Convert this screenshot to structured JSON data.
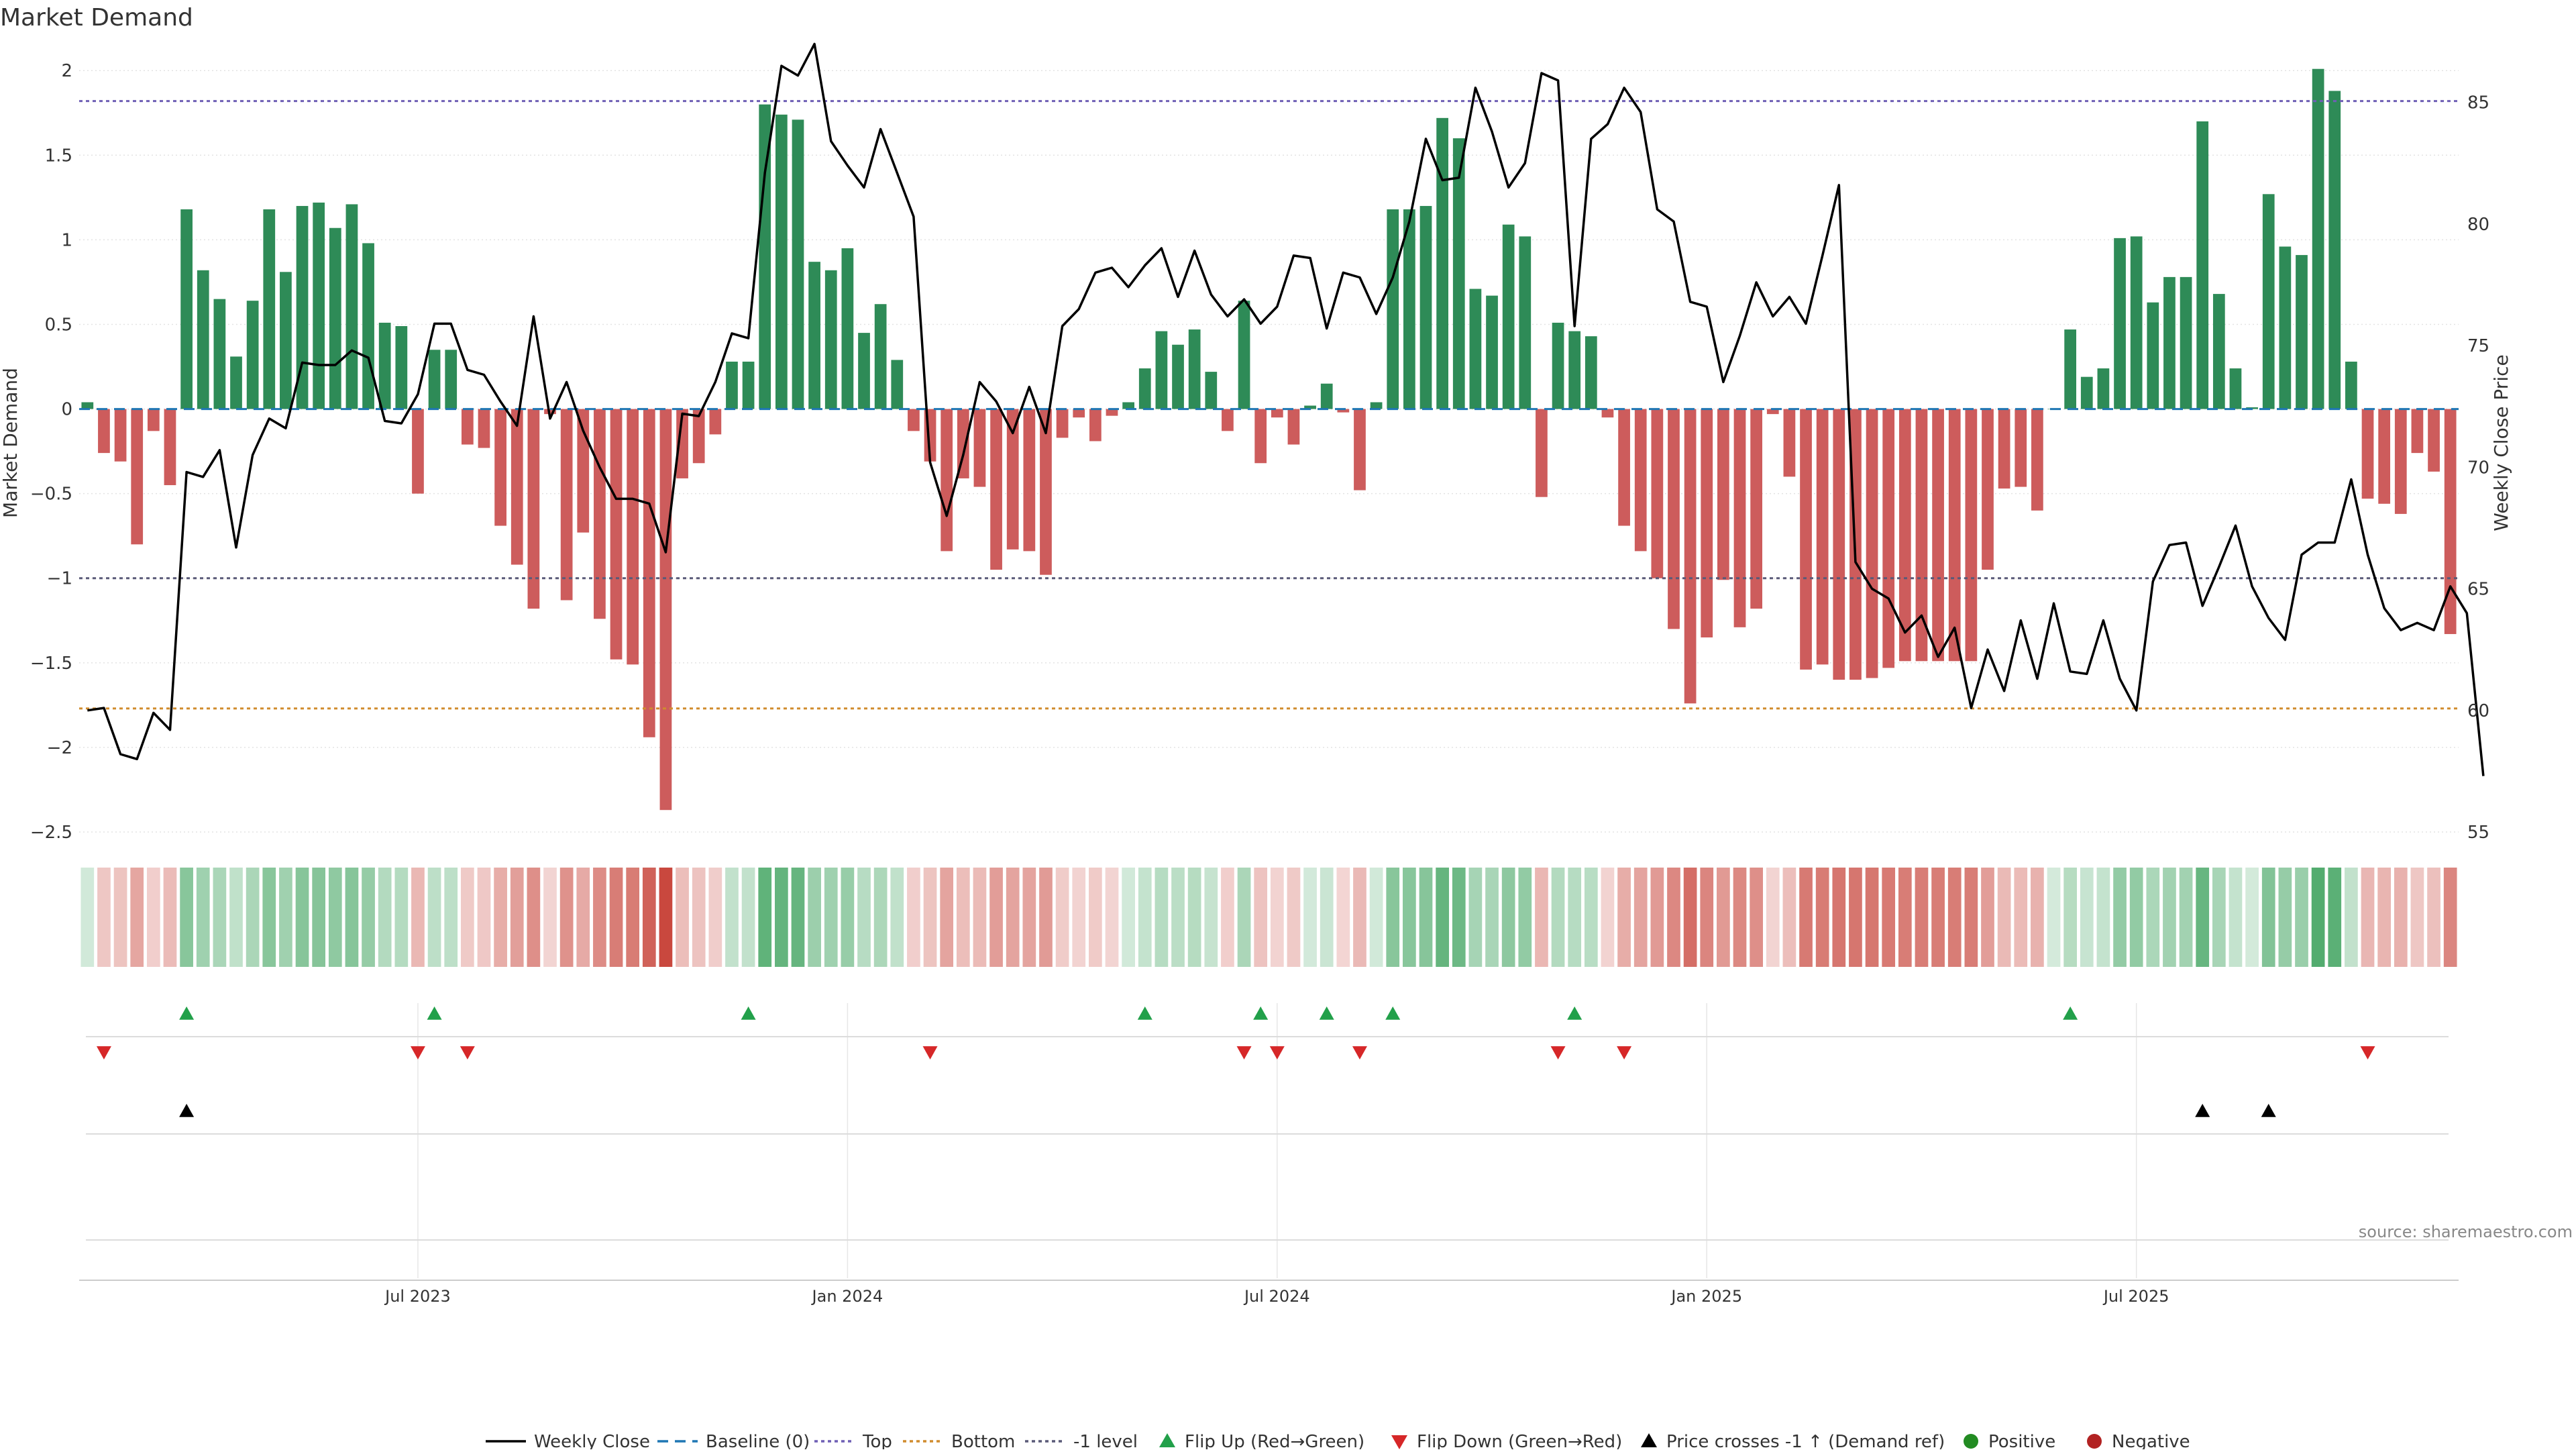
{
  "title": "Market Demand",
  "source": "source: sharemaestro.com",
  "colors": {
    "positive": "#2e8b57",
    "negative": "#cd5c5c",
    "line": "#000000",
    "top": "#6f5fb5",
    "bottom": "#d08c2e",
    "minus1": "#5a5a78",
    "baseline": "#1f77b4",
    "flip_up": "#22a04a",
    "flip_down": "#d62728",
    "cross": "#000000",
    "dot_pos": "#228b22",
    "dot_neg": "#b22222"
  },
  "chart_data": {
    "type": "bar",
    "title": "Market Demand",
    "ylabel": "Market Demand",
    "y2label": "Weekly Close Price",
    "ylim": [
      -2.5,
      2.1
    ],
    "y2lim": [
      55,
      87
    ],
    "yticks": [
      "2",
      "1.5",
      "1",
      "0.5",
      "0",
      "−0.5",
      "−1",
      "−1.5",
      "−2",
      "−2.5"
    ],
    "ytick_values": [
      2,
      1.5,
      1,
      0.5,
      0,
      -0.5,
      -1,
      -1.5,
      -2,
      -2.5
    ],
    "y2ticks": [
      "85",
      "80",
      "75",
      "70",
      "65",
      "60",
      "55"
    ],
    "y2tick_values": [
      85,
      80,
      75,
      70,
      65,
      60,
      55
    ],
    "xticks": [
      "Jul 2023",
      "Jan 2024",
      "Jul 2024",
      "Jan 2025",
      "Jul 2025"
    ],
    "xtick_weeks": [
      20.5,
      46.5,
      72.5,
      98.5,
      124.5
    ],
    "reference_lines": {
      "top": 1.82,
      "bottom": -1.77,
      "minus1": -1.0,
      "baseline": 0
    },
    "demand": [
      0.04,
      -0.26,
      -0.31,
      -0.8,
      -0.13,
      -0.45,
      1.18,
      0.82,
      0.65,
      0.31,
      0.64,
      1.18,
      0.81,
      1.2,
      1.22,
      1.07,
      1.21,
      0.98,
      0.51,
      0.49,
      -0.5,
      0.35,
      0.35,
      -0.21,
      -0.23,
      -0.69,
      -0.92,
      -1.18,
      -0.03,
      -1.13,
      -0.73,
      -1.24,
      -1.48,
      -1.51,
      -1.94,
      -2.37,
      -0.41,
      -0.32,
      -0.15,
      0.28,
      0.28,
      1.8,
      1.74,
      1.71,
      0.87,
      0.82,
      0.95,
      0.45,
      0.62,
      0.29,
      -0.13,
      -0.31,
      -0.84,
      -0.41,
      -0.46,
      -0.95,
      -0.83,
      -0.84,
      -0.98,
      -0.17,
      -0.05,
      -0.19,
      -0.04,
      0.04,
      0.24,
      0.46,
      0.38,
      0.47,
      0.22,
      -0.13,
      0.64,
      -0.32,
      -0.05,
      -0.21,
      0.02,
      0.15,
      -0.02,
      -0.48,
      0.04,
      1.18,
      1.18,
      1.2,
      1.72,
      1.6,
      0.71,
      0.67,
      1.09,
      1.02,
      -0.52,
      0.51,
      0.46,
      0.43,
      -0.05,
      -0.69,
      -0.84,
      -1.0,
      -1.3,
      -1.74,
      -1.35,
      -1.01,
      -1.29,
      -1.18,
      -0.03,
      -0.4,
      -1.54,
      -1.51,
      -1.6,
      -1.6,
      -1.59,
      -1.53,
      -1.49,
      -1.49,
      -1.49,
      -1.49,
      -1.49,
      -0.95,
      -0.47,
      -0.46,
      -0.6,
      0.0,
      0.47,
      0.19,
      0.24,
      1.01,
      1.02,
      0.63,
      0.78,
      0.78,
      1.7,
      0.68,
      0.24,
      0.01,
      1.27,
      0.96,
      0.91,
      2.01,
      1.88,
      0.28,
      -0.53,
      -0.56,
      -0.62,
      -0.26,
      -0.37,
      -1.33
    ],
    "close": [
      60.0,
      60.1,
      58.2,
      58.0,
      59.9,
      59.2,
      69.8,
      69.6,
      70.7,
      66.7,
      70.5,
      72.0,
      71.6,
      74.3,
      74.2,
      74.2,
      74.8,
      74.5,
      71.9,
      71.8,
      73.0,
      75.9,
      75.9,
      74.0,
      73.8,
      72.7,
      71.7,
      76.2,
      72.0,
      73.5,
      71.5,
      70.0,
      68.7,
      68.7,
      68.5,
      66.5,
      72.2,
      72.1,
      73.5,
      75.5,
      75.3,
      82.1,
      86.5,
      86.1,
      87.4,
      83.4,
      82.4,
      81.5,
      83.9,
      82.1,
      80.3,
      70.2,
      68.0,
      70.5,
      73.5,
      72.7,
      71.4,
      73.3,
      71.4,
      75.8,
      76.5,
      78.0,
      78.2,
      77.4,
      78.3,
      79.0,
      77.0,
      78.9,
      77.1,
      76.2,
      76.9,
      75.9,
      76.6,
      78.7,
      78.6,
      75.7,
      78.0,
      77.8,
      76.3,
      77.8,
      80.1,
      83.5,
      81.8,
      81.9,
      85.6,
      83.8,
      81.5,
      82.5,
      86.2,
      85.9,
      75.8,
      83.5,
      84.1,
      85.6,
      84.6,
      80.6,
      80.1,
      76.8,
      76.6,
      73.5,
      75.4,
      77.6,
      76.2,
      77.0,
      75.9,
      78.7,
      81.6,
      66.1,
      65.0,
      64.6,
      63.2,
      63.9,
      62.2,
      63.4,
      60.1,
      62.5,
      60.8,
      63.7,
      61.3,
      64.4,
      61.6,
      61.5,
      63.7,
      61.3,
      60.0,
      65.3,
      66.8,
      66.9,
      64.3,
      65.9,
      67.6,
      65.1,
      63.8,
      62.9,
      66.4,
      66.9,
      66.9,
      69.5,
      66.4,
      64.2,
      63.3,
      63.6,
      63.3,
      65.1,
      64.0,
      57.3
    ],
    "flip_up_weeks": [
      6,
      21,
      40,
      64,
      71,
      75,
      79,
      90,
      120
    ],
    "flip_down_weeks": [
      1,
      20,
      23,
      51,
      70,
      72,
      77,
      89,
      93,
      138
    ],
    "cross_weeks": [
      6,
      128,
      132
    ]
  },
  "legend": [
    {
      "label": "Weekly Close",
      "kind": "line-solid"
    },
    {
      "label": "Baseline (0)",
      "kind": "line-dash-blue"
    },
    {
      "label": "Top",
      "kind": "line-dot-top"
    },
    {
      "label": "Bottom",
      "kind": "line-dot-bottom"
    },
    {
      "label": "-1 level",
      "kind": "line-dot-minus1"
    },
    {
      "label": "Flip Up (Red→Green)",
      "kind": "tri-up-green"
    },
    {
      "label": "Flip Down (Green→Red)",
      "kind": "tri-down-red"
    },
    {
      "label": "Price crosses -1 ↑ (Demand ref)",
      "kind": "tri-up-black"
    },
    {
      "label": "Positive",
      "kind": "dot-green"
    },
    {
      "label": "Negative",
      "kind": "dot-red"
    }
  ]
}
